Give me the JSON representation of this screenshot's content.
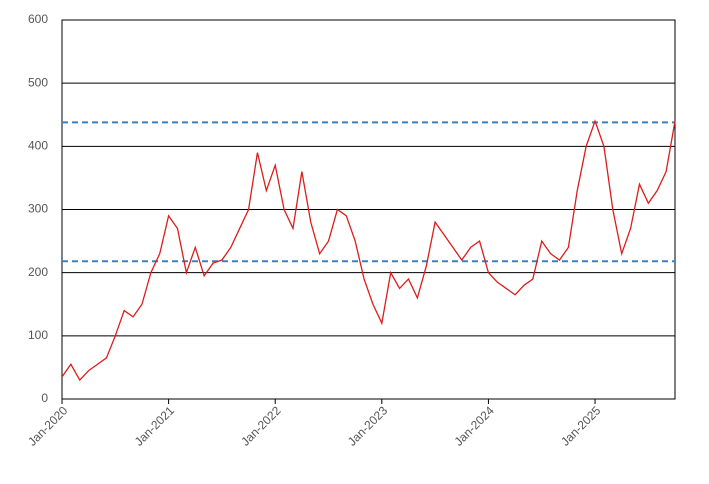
{
  "chart_data": {
    "type": "line",
    "x": [
      "2020-01",
      "2020-02",
      "2020-03",
      "2020-04",
      "2020-05",
      "2020-06",
      "2020-07",
      "2020-08",
      "2020-09",
      "2020-10",
      "2020-11",
      "2020-12",
      "2021-01",
      "2021-02",
      "2021-03",
      "2021-04",
      "2021-05",
      "2021-06",
      "2021-07",
      "2021-08",
      "2021-09",
      "2021-10",
      "2021-11",
      "2021-12",
      "2022-01",
      "2022-02",
      "2022-03",
      "2022-04",
      "2022-05",
      "2022-06",
      "2022-07",
      "2022-08",
      "2022-09",
      "2022-10",
      "2022-11",
      "2022-12",
      "2023-01",
      "2023-02",
      "2023-03",
      "2023-04",
      "2023-05",
      "2023-06",
      "2023-07",
      "2023-08",
      "2023-09",
      "2023-10",
      "2023-11",
      "2023-12",
      "2024-01",
      "2024-02",
      "2024-03",
      "2024-04",
      "2024-05",
      "2024-06",
      "2024-07",
      "2024-08",
      "2024-09",
      "2024-10",
      "2024-11",
      "2024-12",
      "2025-01",
      "2025-02",
      "2025-03",
      "2025-04",
      "2025-05",
      "2025-06",
      "2025-07",
      "2025-08",
      "2025-09",
      "2025-10"
    ],
    "series": [
      {
        "color": "#dd1c1c",
        "values": [
          35,
          55,
          30,
          45,
          55,
          65,
          100,
          140,
          130,
          150,
          200,
          230,
          290,
          270,
          200,
          240,
          195,
          215,
          220,
          240,
          270,
          300,
          390,
          330,
          370,
          300,
          270,
          360,
          280,
          230,
          250,
          300,
          290,
          250,
          190,
          150,
          120,
          200,
          175,
          190,
          160,
          210,
          280,
          260,
          240,
          220,
          240,
          250,
          200,
          185,
          175,
          165,
          180,
          190,
          250,
          230,
          220,
          240,
          330,
          400,
          440,
          400,
          300,
          230,
          270,
          340,
          310,
          330,
          360,
          440
        ]
      }
    ],
    "xlim": [
      "2020-01",
      "2025-10"
    ],
    "xticks": [
      {
        "value": "2020-01",
        "label": "Jan-2020"
      },
      {
        "value": "2021-01",
        "label": "Jan-2021"
      },
      {
        "value": "2022-01",
        "label": "Jan-2022"
      },
      {
        "value": "2023-01",
        "label": "Jan-2023"
      },
      {
        "value": "2024-01",
        "label": "Jan-2024"
      },
      {
        "value": "2025-01",
        "label": "Jan-2025"
      }
    ],
    "ylim": [
      0,
      600
    ],
    "yticks": [
      0,
      100,
      200,
      300,
      400,
      500,
      600
    ],
    "grid": true,
    "hlines": [
      438,
      218
    ],
    "hline_color": "#3a80c0"
  }
}
